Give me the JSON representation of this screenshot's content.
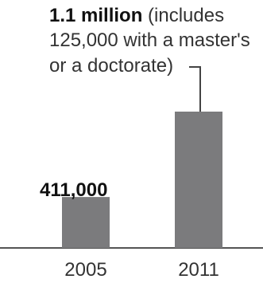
{
  "chart_data": {
    "type": "bar",
    "categories": [
      "2005",
      "2011"
    ],
    "values": [
      411000,
      1100000
    ],
    "ylim": [
      0,
      1200000
    ],
    "bar_color": "#7b7b7d",
    "baseline_color": "#555555",
    "leader_color": "#444444",
    "data_labels": [
      {
        "bold": "411,000",
        "lines": []
      },
      {
        "bold": "1.1 million",
        "lines": [
          " (includes",
          "125,000 with a master's",
          "or a doctorate)"
        ]
      }
    ],
    "grid": false,
    "legend": "none"
  }
}
